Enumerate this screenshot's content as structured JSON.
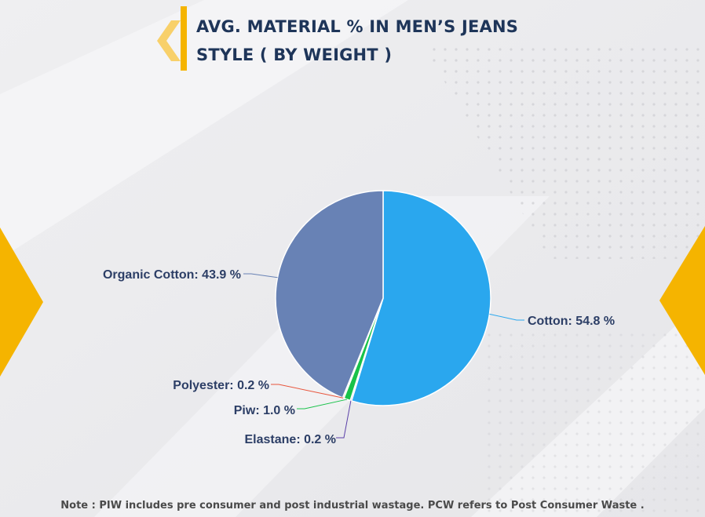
{
  "header": {
    "title_line1": "AVG. MATERIAL % IN MEN’S JEANS",
    "title_line2": "STYLE ( BY WEIGHT )"
  },
  "footer": {
    "note": "Note : PIW includes pre consumer and post industrial wastage. PCW refers to Post Consumer Waste ."
  },
  "colors": {
    "accent": "#f5b400",
    "title": "#1e3559",
    "label": "#2c3e66"
  },
  "chart_data": {
    "type": "pie",
    "start_angle_deg": 0,
    "direction": "clockwise",
    "slices": [
      {
        "label": "Cotton",
        "value": 54.8,
        "display": "Cotton: 54.8 %",
        "color": "#2aa7ee",
        "line_color": "#2aa7ee"
      },
      {
        "label": "Elastane",
        "value": 0.2,
        "display": "Elastane: 0.2 %",
        "color": "#5a3fa8",
        "line_color": "#5a3fa8"
      },
      {
        "label": "Piw",
        "value": 1.0,
        "display": "Piw: 1.0 %",
        "color": "#19c24a",
        "line_color": "#19c24a"
      },
      {
        "label": "Polyester",
        "value": 0.2,
        "display": "Polyester: 0.2 %",
        "color": "#e8553c",
        "line_color": "#e8553c"
      },
      {
        "label": "Organic Cotton",
        "value": 43.9,
        "display": "Organic Cotton: 43.9 %",
        "color": "#6882b5",
        "line_color": "#6882b5"
      }
    ]
  }
}
